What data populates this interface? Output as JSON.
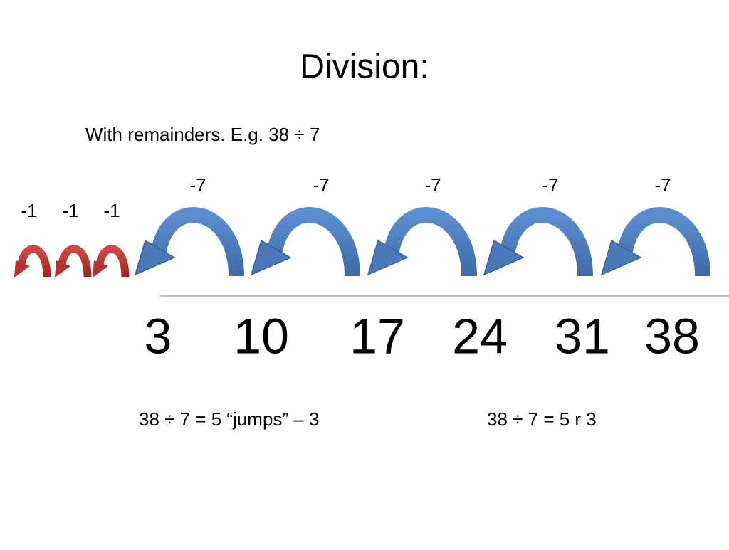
{
  "title": "Division:",
  "subtitle": "With remainders. E.g. 38 ÷ 7",
  "big_jumps": [
    -7,
    -7,
    -7,
    -7,
    -7
  ],
  "small_jumps": [
    -1,
    -1,
    -1
  ],
  "number_line": [
    3,
    10,
    17,
    24,
    31,
    38
  ],
  "notes": [
    "38 ÷ 7 = 5 “jumps” – 3",
    "38 ÷ 7 = 5 r 3"
  ]
}
